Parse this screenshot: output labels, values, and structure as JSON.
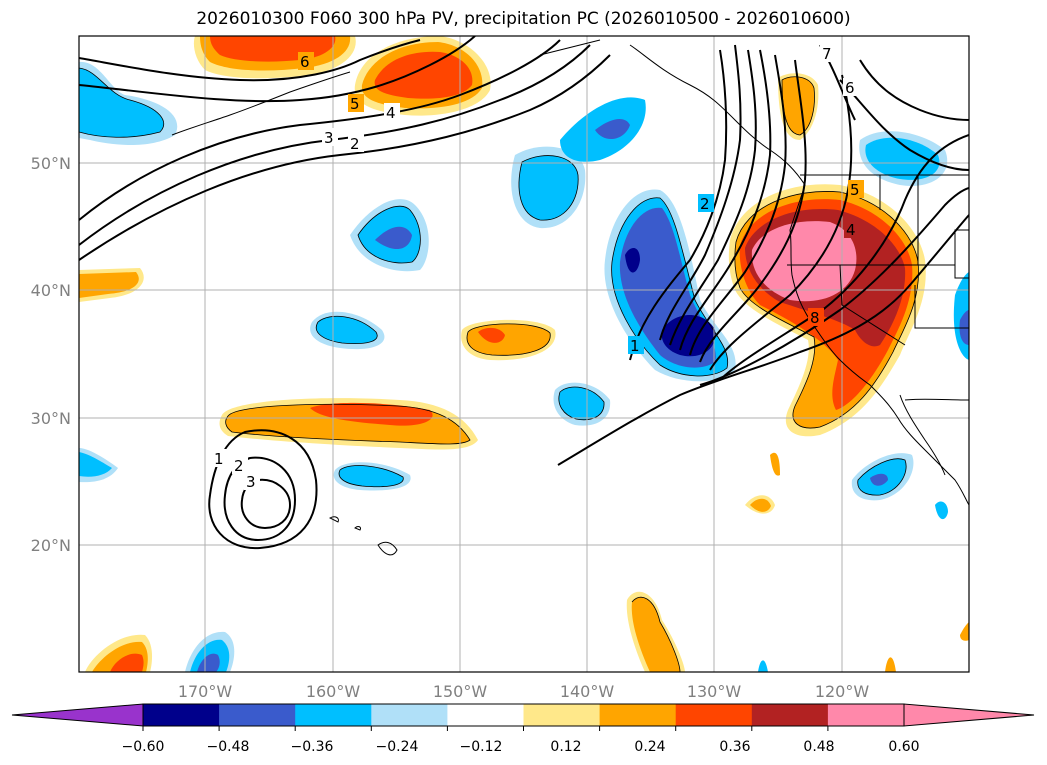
{
  "title": "2026010300 F060 300 hPa PV, precipitation PC (2026010500 - 2026010600)",
  "lon_ticks": [
    "170°W",
    "160°W",
    "150°W",
    "140°W",
    "130°W",
    "120°W"
  ],
  "lat_ticks": [
    "50°N",
    "40°N",
    "30°N",
    "20°N"
  ],
  "colorbar": {
    "labels": [
      "−0.60",
      "−0.48",
      "−0.36",
      "−0.24",
      "−0.12",
      "0.12",
      "0.24",
      "0.36",
      "0.48",
      "0.60"
    ],
    "under_color": "#9933cc",
    "colors": [
      "#00008b",
      "#3a5bcc",
      "#00bfff",
      "#b0e0f8",
      "#ffffff",
      "#ffe88a",
      "#ffa500",
      "#ff4500",
      "#b22222",
      "#ff88aa"
    ],
    "over_color": "#ff88aa"
  },
  "contour_labels": [
    "6",
    "5",
    "4",
    "3",
    "2",
    "7",
    "6",
    "2",
    "5",
    "4",
    "8",
    "1",
    "1",
    "2",
    "3"
  ]
}
